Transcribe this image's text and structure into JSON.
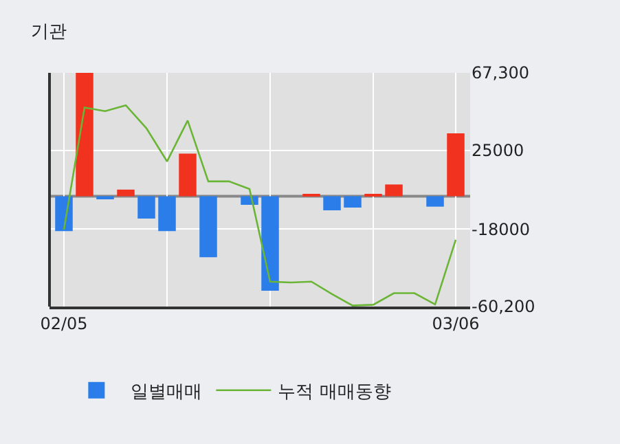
{
  "chart_data": {
    "type": "bar",
    "title": "기관",
    "categories": [
      "02/05",
      null,
      null,
      null,
      null,
      null,
      null,
      null,
      null,
      null,
      null,
      null,
      null,
      null,
      null,
      null,
      null,
      null,
      null,
      "03/06"
    ],
    "series": [
      {
        "name": "일별매매",
        "colors": [
          "#2b7de9",
          "#f0321e",
          "#2b7de9",
          "#f0321e",
          "#2b7de9",
          "#2b7de9",
          "#f0321e",
          "#2b7de9",
          "#f0321e",
          "#2b7de9",
          "#2b7de9",
          "#f0321e",
          "#f0321e",
          "#2b7de9",
          "#2b7de9",
          "#f0321e",
          "#f0321e",
          "#f0321e",
          "#2b7de9",
          "#f0321e"
        ],
        "values": [
          -19000,
          67300,
          -1700,
          3600,
          -12200,
          -19000,
          23200,
          -33300,
          0,
          -4700,
          -51600,
          0,
          1200,
          -7700,
          -6200,
          1200,
          6400,
          0,
          -5700,
          34300
        ]
      },
      {
        "type": "line",
        "name": "누적 매매동향",
        "color": "#6ab535",
        "values": [
          -18200,
          48400,
          46400,
          49600,
          37100,
          19000,
          41300,
          8100,
          8100,
          3900,
          -46600,
          -47100,
          -46600,
          -53400,
          -59700,
          -59200,
          -52900,
          -52900,
          -59000,
          -23800
        ]
      }
    ],
    "ylim": [
      -60200,
      67300
    ],
    "yticks": [
      {
        "value": 67300,
        "label": "67,300"
      },
      25000,
      -18000,
      {
        "value": -60200,
        "label": "-60,200"
      }
    ],
    "grid": true,
    "legend": "bottom",
    "marker": "none",
    "line_style": "solid",
    "ref_lines": [
      {
        "axis": "y",
        "value": 0,
        "color": "#888888"
      }
    ]
  }
}
